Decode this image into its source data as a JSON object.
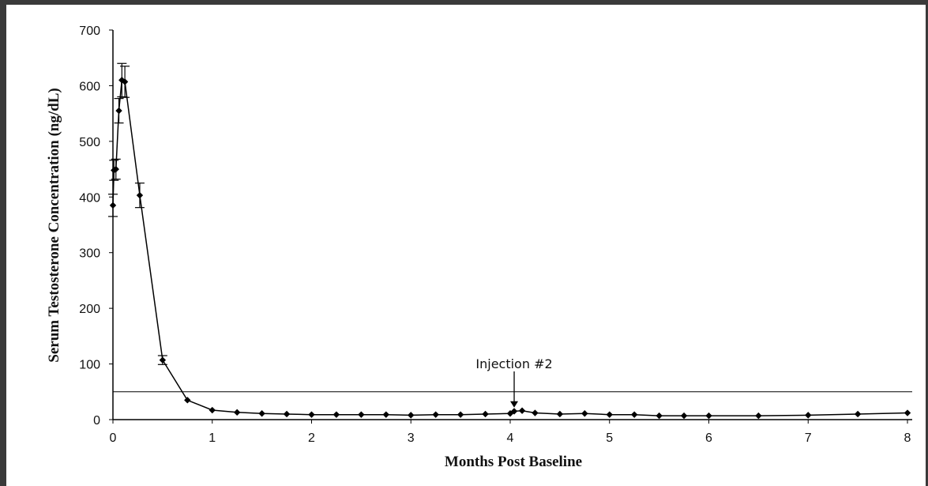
{
  "chart_data": {
    "type": "line",
    "title": "",
    "xlabel": "Months Post Baseline",
    "ylabel": "Serum Testosterone Concentration (ng/dL)",
    "xlim": [
      0,
      8
    ],
    "ylim": [
      0,
      700
    ],
    "x_ticks": [
      0,
      1,
      2,
      3,
      4,
      5,
      6,
      7,
      8
    ],
    "y_ticks": [
      0,
      100,
      200,
      300,
      400,
      500,
      600,
      700
    ],
    "grid": false,
    "legend": "none",
    "series": [
      {
        "x": [
          0,
          0.01,
          0.03,
          0.06,
          0.09,
          0.12,
          0.27,
          0.5,
          0.75,
          1,
          1.25,
          1.5,
          1.75,
          2,
          2.25,
          2.5,
          2.75,
          3,
          3.25,
          3.5,
          3.75,
          4,
          4.04,
          4.12,
          4.25,
          4.5,
          4.75,
          5,
          5.25,
          5.5,
          5.75,
          6,
          6.5,
          7,
          7.5,
          8
        ],
        "values": [
          385,
          448,
          450,
          555,
          610,
          607,
          403,
          107,
          35,
          17,
          13,
          11,
          10,
          9,
          9,
          9,
          9,
          8,
          9,
          9,
          10,
          11,
          15,
          16,
          12,
          10,
          11,
          9,
          9,
          7,
          7,
          7,
          7,
          8,
          10,
          12
        ],
        "error": [
          20,
          18,
          18,
          22,
          30,
          28,
          22,
          8,
          0,
          0,
          0,
          0,
          0,
          0,
          0,
          0,
          0,
          0,
          0,
          0,
          0,
          0,
          0,
          0,
          0,
          0,
          0,
          0,
          0,
          0,
          0,
          0,
          0,
          0,
          0,
          0
        ]
      }
    ],
    "reference_line": {
      "y": 50
    },
    "annotations": [
      {
        "text": "Injection #2",
        "x": 4.04,
        "y": 16
      }
    ]
  }
}
